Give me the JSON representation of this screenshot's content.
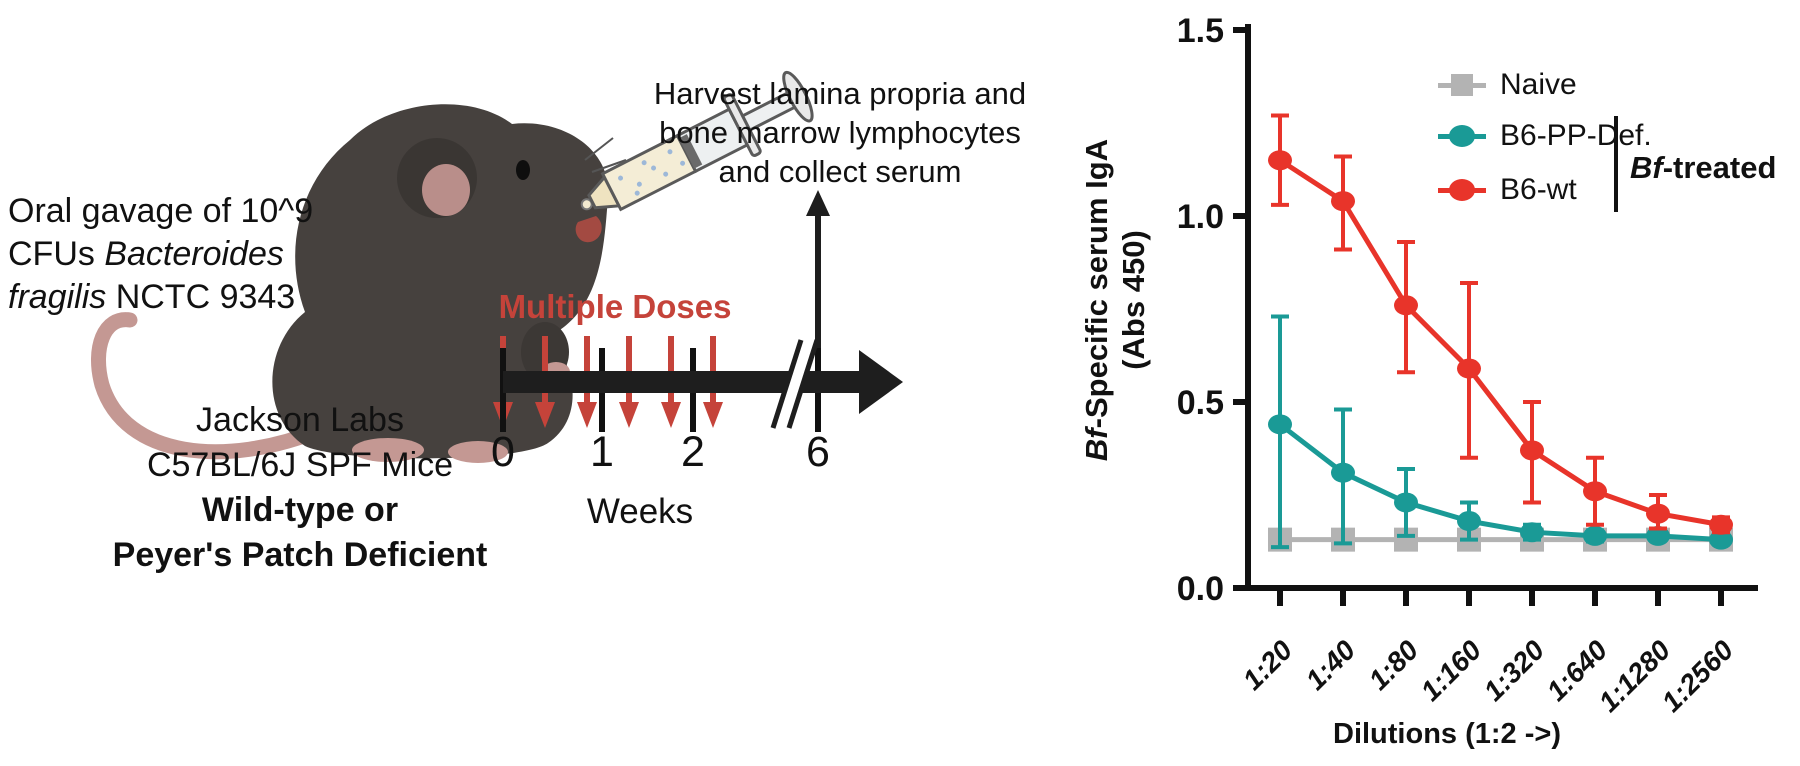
{
  "diagram": {
    "oral_gavage_line1": "Oral gavage of 10^9",
    "oral_gavage_line2_prefix": "CFUs ",
    "oral_gavage_line2_italic": "Bacteroides",
    "oral_gavage_line3_italic": "fragilis",
    "oral_gavage_line3_suffix": " NCTC 9343",
    "mice_line1": "Jackson Labs",
    "mice_line2": "C57BL/6J SPF Mice",
    "mice_line3": "Wild-type or",
    "mice_line4": "Peyer's Patch Deficient",
    "harvest_line1": "Harvest lamina propria and",
    "harvest_line2": "bone marrow lymphocytes",
    "harvest_line3": "and collect serum",
    "doses_label": "Multiple Doses",
    "doses_color": "#c5433a",
    "timeline_ticks": [
      "0",
      "1",
      "2",
      "6"
    ],
    "timeline_axis_label": "Weeks"
  },
  "chart_data": {
    "type": "line",
    "xlabel": "Dilutions (1:2 ->)",
    "ylabel_italic": "Bf",
    "ylabel_rest": "-Specific serum IgA",
    "ylabel_line2": "(Abs 450)",
    "categories": [
      "1:20",
      "1:40",
      "1:80",
      "1:160",
      "1:320",
      "1:640",
      "1:1280",
      "1:2560"
    ],
    "ylim": [
      0,
      1.5
    ],
    "yticks": [
      1.5,
      1.0,
      0.5,
      0.0
    ],
    "grid": false,
    "legend_position": "top-right",
    "legend_bracket_italic": "Bf",
    "legend_bracket_rest": "-treated",
    "series": [
      {
        "name": "Naive",
        "marker": "square",
        "color": "#b3b3b3",
        "values": [
          0.13,
          0.13,
          0.13,
          0.13,
          0.13,
          0.13,
          0.13,
          0.13
        ],
        "err_up": [
          0.02,
          0.02,
          0.02,
          0.02,
          0.02,
          0.02,
          0.02,
          0.02
        ],
        "err_down": [
          0.02,
          0.02,
          0.02,
          0.02,
          0.02,
          0.02,
          0.02,
          0.02
        ]
      },
      {
        "name": "B6-PP-Def.",
        "marker": "circle",
        "color": "#1a9a96",
        "values": [
          0.44,
          0.31,
          0.23,
          0.18,
          0.15,
          0.14,
          0.14,
          0.13
        ],
        "err_up": [
          0.29,
          0.17,
          0.09,
          0.05,
          0.02,
          0.015,
          0.01,
          0.01
        ],
        "err_down": [
          0.33,
          0.19,
          0.09,
          0.05,
          0.02,
          0.015,
          0.01,
          0.01
        ]
      },
      {
        "name": "B6-wt",
        "marker": "circle",
        "color": "#e8342a",
        "values": [
          1.15,
          1.04,
          0.76,
          0.59,
          0.37,
          0.26,
          0.2,
          0.17
        ],
        "err_up": [
          0.12,
          0.12,
          0.17,
          0.23,
          0.13,
          0.09,
          0.05,
          0.02
        ],
        "err_down": [
          0.12,
          0.13,
          0.18,
          0.24,
          0.14,
          0.09,
          0.04,
          0.02
        ]
      }
    ]
  }
}
